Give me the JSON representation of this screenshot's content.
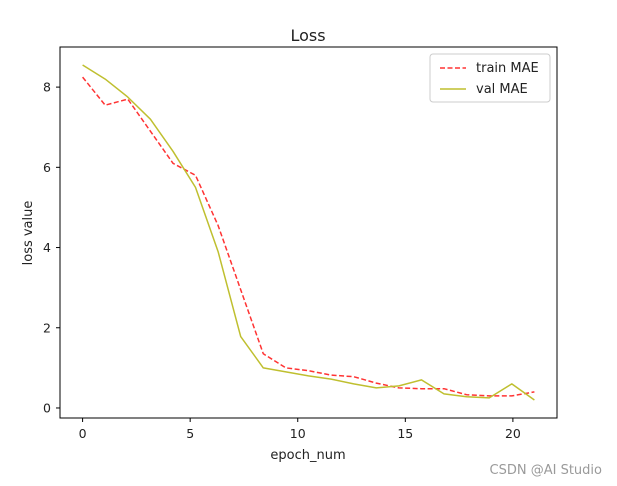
{
  "chart_data": {
    "type": "line",
    "title": "Loss",
    "xlabel": "epoch_num",
    "ylabel": "loss value",
    "xlim": [
      -1.05,
      22.05
    ],
    "ylim": [
      -0.25,
      9.0
    ],
    "xticks": [
      0,
      5,
      10,
      15,
      20
    ],
    "yticks": [
      0,
      2,
      4,
      6,
      8
    ],
    "grid": false,
    "legend_position": "top-right",
    "series": [
      {
        "name": "train MAE",
        "color": "#ff3333",
        "style": "dashed",
        "x": [
          0,
          1.05,
          2.1,
          3.15,
          4.2,
          5.25,
          6.3,
          7.35,
          8.4,
          9.45,
          10.5,
          11.55,
          12.6,
          13.65,
          14.7,
          15.75,
          16.8,
          17.85,
          18.9,
          19.95,
          21.0
        ],
        "y": [
          8.25,
          7.55,
          7.7,
          6.9,
          6.1,
          5.8,
          4.55,
          2.95,
          1.35,
          1.0,
          0.93,
          0.82,
          0.78,
          0.62,
          0.5,
          0.48,
          0.48,
          0.33,
          0.3,
          0.3,
          0.4
        ]
      },
      {
        "name": "val MAE",
        "color": "#bfbf2f",
        "style": "solid",
        "x": [
          0,
          1.05,
          2.1,
          3.15,
          4.2,
          5.25,
          6.3,
          7.35,
          8.4,
          9.45,
          10.5,
          11.55,
          12.6,
          13.65,
          14.7,
          15.75,
          16.8,
          17.85,
          18.9,
          19.95,
          21.0
        ],
        "y": [
          8.55,
          8.2,
          7.75,
          7.2,
          6.4,
          5.5,
          3.9,
          1.78,
          1.0,
          0.9,
          0.8,
          0.72,
          0.6,
          0.5,
          0.55,
          0.7,
          0.35,
          0.28,
          0.25,
          0.6,
          0.2
        ]
      }
    ]
  },
  "watermark": "CSDN @AI Studio"
}
